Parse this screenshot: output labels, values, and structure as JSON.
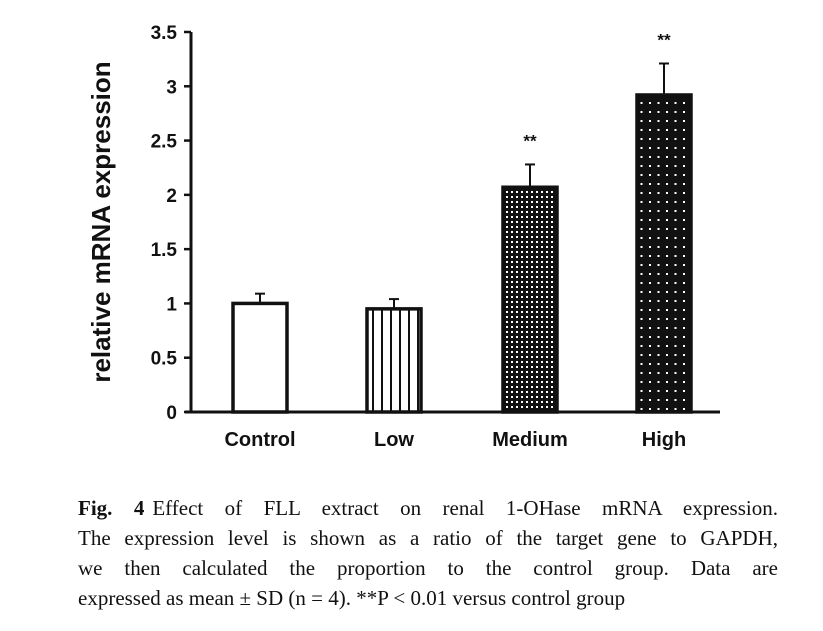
{
  "chart_data": {
    "type": "bar",
    "title": "",
    "xlabel": "",
    "ylabel": "relative mRNA expression",
    "ylim": [
      0,
      3.5
    ],
    "yticks": [
      0,
      0.5,
      1,
      1.5,
      2,
      2.5,
      3,
      3.5
    ],
    "ytick_labels": [
      "0",
      "0.5",
      "1",
      "1.5",
      "2",
      "2.5",
      "3",
      "3.5"
    ],
    "categories": [
      "Control",
      "Low",
      "Medium",
      "High"
    ],
    "values": [
      1.0,
      0.95,
      2.07,
      2.92
    ],
    "errors": [
      0.09,
      0.09,
      0.21,
      0.29
    ],
    "patterns": [
      "white",
      "vertical-lines",
      "dense-dots",
      "sparse-dots"
    ],
    "annotations": [
      "",
      "",
      "**",
      "**"
    ],
    "grid": false,
    "legend": "none"
  },
  "caption": {
    "fig_label": "Fig. 4",
    "lines": [
      "Effect of FLL extract on renal 1-OHase mRNA expression.",
      "The expression level is shown as a ratio of the target gene to GAPDH,",
      "we then calculated the proportion to the control group. Data are",
      "expressed as mean ± SD (n = 4). **P < 0.01 versus control group"
    ]
  }
}
